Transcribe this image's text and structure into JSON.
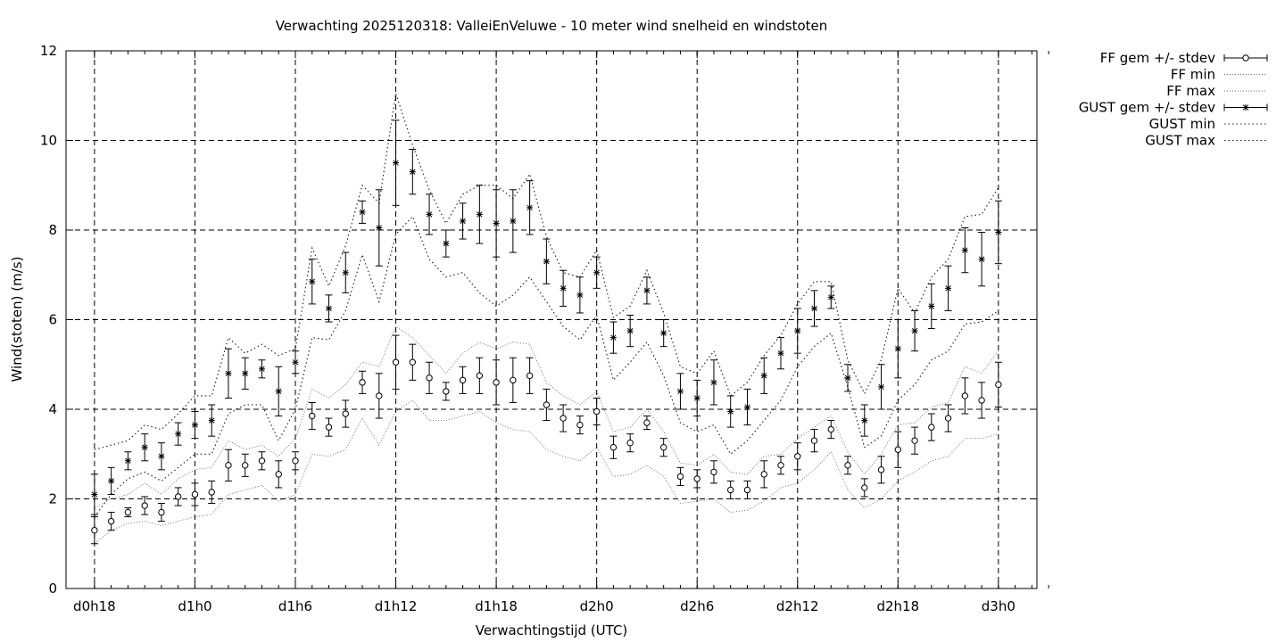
{
  "chart_data": {
    "type": "line",
    "title": "Verwachting 2025120318: ValleiEnVeluwe - 10 meter wind snelheid en windstoten",
    "xlabel": "Verwachtingstijd (UTC)",
    "ylabel": "Wind(stoten) (m/s)",
    "x_hours": [
      0,
      1,
      2,
      3,
      4,
      5,
      6,
      7,
      8,
      9,
      10,
      11,
      12,
      13,
      14,
      15,
      16,
      17,
      18,
      19,
      20,
      21,
      22,
      23,
      24,
      25,
      26,
      27,
      28,
      29,
      30,
      31,
      32,
      33,
      34,
      35,
      36,
      37,
      38,
      39,
      40,
      41,
      42,
      43,
      44,
      45,
      46,
      47,
      48,
      49,
      50,
      51,
      52,
      53,
      54,
      55,
      56,
      57
    ],
    "xlim": [
      -1.7,
      56.3
    ],
    "ylim": [
      0,
      12
    ],
    "yticks": [
      0,
      2,
      4,
      6,
      8,
      10,
      12
    ],
    "xticks": [
      {
        "x": 0,
        "label": "d0h18"
      },
      {
        "x": 6,
        "label": "d1h0"
      },
      {
        "x": 12,
        "label": "d1h6"
      },
      {
        "x": 18,
        "label": "d1h12"
      },
      {
        "x": 24,
        "label": "d1h18"
      },
      {
        "x": 30,
        "label": "d2h0"
      },
      {
        "x": 36,
        "label": "d2h6"
      },
      {
        "x": 42,
        "label": "d2h12"
      },
      {
        "x": 48,
        "label": "d2h18"
      },
      {
        "x": 54,
        "label": "d3h0"
      }
    ],
    "grid": true,
    "legend_position": "outside-right",
    "series": [
      {
        "name": "FF gem +/- stdev",
        "marker": "circle",
        "x": [
          0,
          1,
          2,
          3,
          4,
          5,
          6,
          7,
          8,
          9,
          10,
          11,
          12,
          13,
          14,
          15,
          16,
          17,
          18,
          19,
          20,
          21,
          22,
          23,
          24,
          25,
          26,
          27,
          28,
          29,
          30,
          31,
          32,
          33,
          34,
          35,
          36,
          37,
          38,
          39,
          40,
          41,
          42,
          43,
          44,
          45,
          46,
          47,
          48,
          49,
          50,
          51,
          52,
          53,
          54
        ],
        "values": [
          1.3,
          1.5,
          1.7,
          1.85,
          1.7,
          2.05,
          2.1,
          2.15,
          2.75,
          2.75,
          2.85,
          2.55,
          2.85,
          3.85,
          3.6,
          3.9,
          4.6,
          4.3,
          5.05,
          5.05,
          4.7,
          4.4,
          4.65,
          4.75,
          4.6,
          4.65,
          4.75,
          4.1,
          3.8,
          3.65,
          3.95,
          3.15,
          3.25,
          3.7,
          3.15,
          2.5,
          2.45,
          2.6,
          2.2,
          2.2,
          2.55,
          2.75,
          2.95,
          3.3,
          3.55,
          2.75,
          2.25,
          2.65,
          3.1,
          3.3,
          3.6,
          3.8,
          4.3,
          4.2,
          4.55
        ],
        "stdev": [
          0.3,
          0.2,
          0.1,
          0.2,
          0.2,
          0.2,
          0.25,
          0.25,
          0.35,
          0.25,
          0.2,
          0.3,
          0.2,
          0.3,
          0.2,
          0.3,
          0.25,
          0.5,
          0.6,
          0.4,
          0.35,
          0.2,
          0.3,
          0.4,
          0.5,
          0.5,
          0.4,
          0.35,
          0.3,
          0.2,
          0.3,
          0.25,
          0.2,
          0.15,
          0.2,
          0.2,
          0.2,
          0.25,
          0.2,
          0.2,
          0.3,
          0.2,
          0.3,
          0.25,
          0.2,
          0.2,
          0.2,
          0.3,
          0.4,
          0.3,
          0.3,
          0.3,
          0.4,
          0.4,
          0.5
        ]
      },
      {
        "name": "FF min",
        "style": "dotted",
        "x": [
          0,
          1,
          2,
          3,
          4,
          5,
          6,
          7,
          8,
          9,
          10,
          11,
          12,
          13,
          14,
          15,
          16,
          17,
          18,
          19,
          20,
          21,
          22,
          23,
          24,
          25,
          26,
          27,
          28,
          29,
          30,
          31,
          32,
          33,
          34,
          35,
          36,
          37,
          38,
          39,
          40,
          41,
          42,
          43,
          44,
          45,
          46,
          47,
          48,
          49,
          50,
          51,
          52,
          53,
          54
        ],
        "values": [
          1.0,
          1.3,
          1.45,
          1.5,
          1.4,
          1.5,
          1.6,
          1.65,
          2.1,
          2.2,
          2.3,
          1.95,
          2.1,
          3.0,
          2.95,
          3.1,
          3.8,
          3.2,
          3.95,
          4.2,
          3.75,
          3.75,
          3.85,
          3.95,
          3.7,
          3.55,
          3.5,
          3.1,
          2.95,
          2.85,
          3.15,
          2.5,
          2.55,
          2.75,
          2.5,
          1.9,
          1.95,
          2.0,
          1.7,
          1.75,
          1.95,
          2.25,
          2.35,
          2.65,
          3.05,
          2.2,
          1.8,
          2.0,
          2.4,
          2.6,
          2.85,
          2.95,
          3.35,
          3.35,
          3.45
        ]
      },
      {
        "name": "FF max",
        "style": "dotted",
        "x": [
          0,
          1,
          2,
          3,
          4,
          5,
          6,
          7,
          8,
          9,
          10,
          11,
          12,
          13,
          14,
          15,
          16,
          17,
          18,
          19,
          20,
          21,
          22,
          23,
          24,
          25,
          26,
          27,
          28,
          29,
          30,
          31,
          32,
          33,
          34,
          35,
          36,
          37,
          38,
          39,
          40,
          41,
          42,
          43,
          44,
          45,
          46,
          47,
          48,
          49,
          50,
          51,
          52,
          53,
          54
        ],
        "values": [
          1.8,
          2.0,
          2.1,
          2.35,
          2.1,
          2.45,
          2.65,
          2.7,
          3.3,
          3.1,
          3.2,
          2.95,
          3.35,
          4.45,
          4.25,
          4.55,
          5.05,
          4.95,
          5.85,
          5.6,
          5.2,
          4.8,
          5.25,
          5.5,
          5.35,
          5.5,
          5.45,
          4.6,
          4.3,
          4.1,
          4.4,
          3.5,
          3.6,
          4.0,
          3.5,
          2.8,
          2.75,
          3.0,
          2.6,
          2.55,
          2.95,
          3.0,
          3.35,
          3.6,
          3.85,
          3.05,
          2.55,
          3.0,
          3.65,
          3.7,
          4.05,
          4.15,
          4.95,
          4.8,
          5.3
        ]
      },
      {
        "name": "GUST gem +/- stdev",
        "marker": "star",
        "x": [
          0,
          1,
          2,
          3,
          4,
          5,
          6,
          7,
          8,
          9,
          10,
          11,
          12,
          13,
          14,
          15,
          16,
          17,
          18,
          19,
          20,
          21,
          22,
          23,
          24,
          25,
          26,
          27,
          28,
          29,
          30,
          31,
          32,
          33,
          34,
          35,
          36,
          37,
          38,
          39,
          40,
          41,
          42,
          43,
          44,
          45,
          46,
          47,
          48,
          49,
          50,
          51,
          52,
          53,
          54
        ],
        "values": [
          2.1,
          2.4,
          2.85,
          3.15,
          2.95,
          3.45,
          3.65,
          3.75,
          4.8,
          4.8,
          4.9,
          4.4,
          5.05,
          6.85,
          6.25,
          7.05,
          8.4,
          8.05,
          9.5,
          9.3,
          8.35,
          7.7,
          8.2,
          8.35,
          8.15,
          8.2,
          8.5,
          7.3,
          6.7,
          6.55,
          7.05,
          5.6,
          5.75,
          6.65,
          5.7,
          4.4,
          4.25,
          4.6,
          3.95,
          4.05,
          4.75,
          5.25,
          5.75,
          6.25,
          6.5,
          4.7,
          3.75,
          4.5,
          5.35,
          5.75,
          6.3,
          6.7,
          7.55,
          7.35,
          7.95
        ],
        "stdev": [
          0.45,
          0.3,
          0.2,
          0.3,
          0.3,
          0.25,
          0.3,
          0.35,
          0.55,
          0.35,
          0.2,
          0.55,
          0.25,
          0.5,
          0.3,
          0.45,
          0.25,
          0.85,
          0.95,
          0.5,
          0.45,
          0.3,
          0.4,
          0.65,
          0.75,
          0.7,
          0.6,
          0.5,
          0.4,
          0.4,
          0.35,
          0.35,
          0.35,
          0.3,
          0.3,
          0.4,
          0.4,
          0.5,
          0.35,
          0.4,
          0.4,
          0.35,
          0.5,
          0.4,
          0.25,
          0.3,
          0.35,
          0.5,
          0.65,
          0.45,
          0.5,
          0.5,
          0.5,
          0.6,
          0.7
        ]
      },
      {
        "name": "GUST min",
        "style": "dotted",
        "x": [
          0,
          1,
          2,
          3,
          4,
          5,
          6,
          7,
          8,
          9,
          10,
          11,
          12,
          13,
          14,
          15,
          16,
          17,
          18,
          19,
          20,
          21,
          22,
          23,
          24,
          25,
          26,
          27,
          28,
          29,
          30,
          31,
          32,
          33,
          34,
          35,
          36,
          37,
          38,
          39,
          40,
          41,
          42,
          43,
          44,
          45,
          46,
          47,
          48,
          49,
          50,
          51,
          52,
          53,
          54
        ],
        "values": [
          1.6,
          2.1,
          2.45,
          2.6,
          2.4,
          2.7,
          3.0,
          3.0,
          3.9,
          4.1,
          4.1,
          3.3,
          4.0,
          5.6,
          5.55,
          6.2,
          7.45,
          6.4,
          7.9,
          8.3,
          7.35,
          6.95,
          7.05,
          6.6,
          6.3,
          6.55,
          6.95,
          6.4,
          5.85,
          5.55,
          6.1,
          4.65,
          5.05,
          5.5,
          4.75,
          3.7,
          3.5,
          3.65,
          3.0,
          3.3,
          3.75,
          4.2,
          4.95,
          5.4,
          5.7,
          4.5,
          3.15,
          3.4,
          4.2,
          4.55,
          5.1,
          5.3,
          5.9,
          5.95,
          6.2
        ]
      },
      {
        "name": "GUST max",
        "style": "dotted",
        "x": [
          0,
          1,
          2,
          3,
          4,
          5,
          6,
          7,
          8,
          9,
          10,
          11,
          12,
          13,
          14,
          15,
          16,
          17,
          18,
          19,
          20,
          21,
          22,
          23,
          24,
          25,
          26,
          27,
          28,
          29,
          30,
          31,
          32,
          33,
          34,
          35,
          36,
          37,
          38,
          39,
          40,
          41,
          42,
          43,
          44,
          45,
          46,
          47,
          48,
          49,
          50,
          51,
          52,
          53,
          54
        ],
        "values": [
          3.1,
          3.2,
          3.3,
          3.65,
          3.55,
          3.9,
          4.3,
          4.3,
          5.6,
          5.25,
          5.45,
          5.2,
          5.35,
          7.6,
          6.75,
          7.65,
          9.0,
          8.6,
          11.05,
          9.9,
          8.9,
          8.15,
          8.8,
          9.0,
          9.0,
          8.7,
          9.25,
          7.85,
          7.05,
          6.95,
          7.55,
          6.05,
          6.3,
          7.1,
          6.15,
          4.95,
          4.8,
          5.3,
          4.3,
          4.6,
          5.2,
          5.65,
          6.35,
          6.85,
          6.85,
          5.1,
          4.35,
          5.1,
          6.7,
          6.15,
          6.95,
          7.35,
          8.3,
          8.35,
          8.95
        ]
      }
    ]
  }
}
